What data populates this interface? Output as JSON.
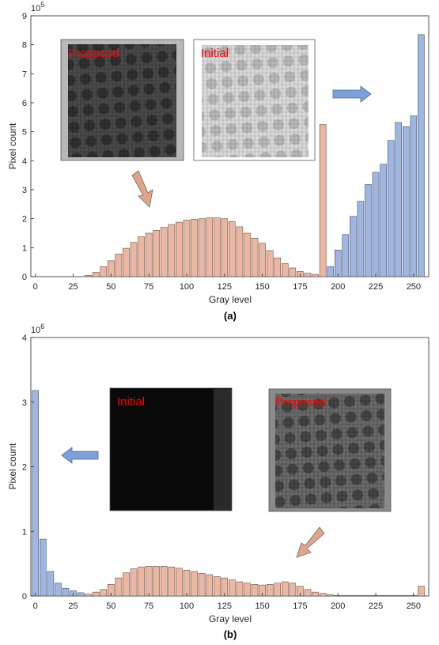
{
  "colors": {
    "initial_bar": "#9eb6e3",
    "proposed_bar": "#edb6a0",
    "bar_edge": "#3a3a3a",
    "arrow_blue": "#7da0d8",
    "arrow_salmon": "#e3a48c",
    "label_red": "#ff0000"
  },
  "chart_data": [
    {
      "type": "bar",
      "panel_label": "(a)",
      "xlabel": "Gray level",
      "ylabel": "Pixel count",
      "y_exponent_base": "10",
      "y_exponent_power": "5",
      "xlim": [
        -3,
        260
      ],
      "ylim": [
        0,
        9
      ],
      "x_ticks": [
        0,
        25,
        50,
        75,
        100,
        125,
        150,
        175,
        200,
        225,
        250
      ],
      "y_ticks": [
        0,
        1,
        2,
        3,
        4,
        5,
        6,
        7,
        8,
        9
      ],
      "insets": [
        {
          "label": "Proposed",
          "tone": "proposed"
        },
        {
          "label": "Initial",
          "tone": "initial-light"
        }
      ],
      "series": [
        {
          "color_key": "proposed_bar",
          "x": [
            35,
            40,
            45,
            50,
            55,
            60,
            65,
            70,
            75,
            80,
            85,
            90,
            95,
            100,
            105,
            110,
            115,
            120,
            125,
            130,
            135,
            140,
            145,
            150,
            155,
            160,
            165,
            170,
            175,
            180,
            185,
            190
          ],
          "values": [
            0.05,
            0.15,
            0.35,
            0.55,
            0.78,
            0.98,
            1.18,
            1.38,
            1.5,
            1.6,
            1.7,
            1.8,
            1.88,
            1.95,
            1.98,
            2.0,
            2.03,
            2.03,
            2.0,
            1.9,
            1.72,
            1.5,
            1.33,
            1.15,
            0.9,
            0.65,
            0.45,
            0.3,
            0.18,
            0.12,
            0.08,
            5.25
          ]
        },
        {
          "color_key": "initial_bar",
          "x": [
            195,
            200,
            205,
            210,
            215,
            220,
            225,
            230,
            235,
            240,
            245,
            250,
            255
          ],
          "values": [
            0.35,
            0.92,
            1.45,
            2.08,
            2.6,
            3.18,
            3.6,
            3.88,
            4.7,
            5.32,
            5.18,
            5.55,
            8.35
          ]
        }
      ]
    },
    {
      "type": "bar",
      "panel_label": "(b)",
      "xlabel": "Gray level",
      "ylabel": "Pixel count",
      "y_exponent_base": "10",
      "y_exponent_power": "6",
      "xlim": [
        -3,
        260
      ],
      "ylim": [
        0,
        4
      ],
      "x_ticks": [
        0,
        25,
        50,
        75,
        100,
        125,
        150,
        175,
        200,
        225,
        250
      ],
      "y_ticks": [
        0,
        1,
        2,
        3,
        4
      ],
      "insets": [
        {
          "label": "Initial",
          "tone": "initial-dark"
        },
        {
          "label": "Proposed",
          "tone": "proposed"
        }
      ],
      "series": [
        {
          "color_key": "initial_bar",
          "x": [
            0,
            5,
            10,
            15,
            20,
            25,
            30
          ],
          "values": [
            3.18,
            0.88,
            0.38,
            0.2,
            0.12,
            0.08,
            0.05
          ]
        },
        {
          "color_key": "proposed_bar",
          "x": [
            35,
            40,
            45,
            50,
            55,
            60,
            65,
            70,
            75,
            80,
            85,
            90,
            95,
            100,
            105,
            110,
            115,
            120,
            125,
            130,
            135,
            140,
            145,
            150,
            155,
            160,
            165,
            170,
            175,
            180,
            185,
            190,
            195,
            200,
            205,
            210,
            215,
            220,
            225,
            230,
            235,
            240,
            245,
            250,
            255
          ],
          "values": [
            0.03,
            0.06,
            0.1,
            0.18,
            0.28,
            0.36,
            0.42,
            0.45,
            0.46,
            0.46,
            0.46,
            0.45,
            0.43,
            0.4,
            0.38,
            0.35,
            0.33,
            0.3,
            0.28,
            0.25,
            0.22,
            0.2,
            0.18,
            0.17,
            0.18,
            0.2,
            0.22,
            0.2,
            0.15,
            0.1,
            0.06,
            0.04,
            0.02,
            0.01,
            0.01,
            0.01,
            0.01,
            0.01,
            0.01,
            0.01,
            0.01,
            0.01,
            0.01,
            0.01,
            0.15
          ]
        }
      ]
    }
  ]
}
